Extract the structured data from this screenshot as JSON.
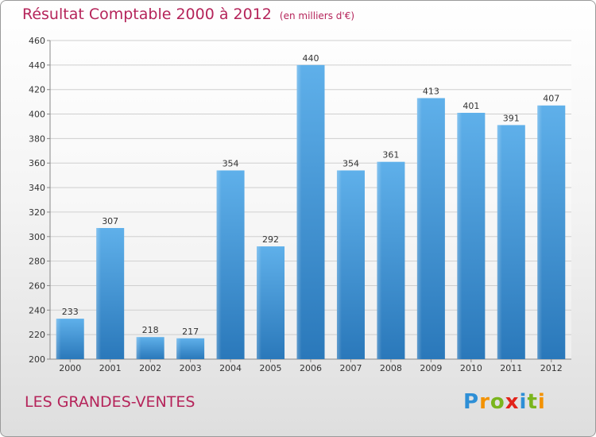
{
  "header": {
    "title": "Résultat Comptable 2000 à 2012",
    "subtitle": "(en milliers d'€)"
  },
  "footer": {
    "place": "LES GRANDES-VENTES",
    "logo": [
      "P",
      "r",
      "o",
      "x",
      "i",
      "t",
      "i"
    ]
  },
  "colors": {
    "bar": "#3a8fd0",
    "title": "#b5245a"
  },
  "chart_data": {
    "type": "bar",
    "title": "Résultat Comptable 2000 à 2012",
    "subtitle": "(en milliers d'€)",
    "categories": [
      "2000",
      "2001",
      "2002",
      "2003",
      "2004",
      "2005",
      "2006",
      "2007",
      "2008",
      "2009",
      "2010",
      "2011",
      "2012"
    ],
    "values": [
      233,
      307,
      218,
      217,
      354,
      292,
      440,
      354,
      361,
      413,
      401,
      391,
      407
    ],
    "ylim": [
      200,
      460
    ],
    "yticks": [
      200,
      220,
      240,
      260,
      280,
      300,
      320,
      340,
      360,
      380,
      400,
      420,
      440,
      460
    ],
    "grid": true,
    "xlabel": "",
    "ylabel": ""
  }
}
